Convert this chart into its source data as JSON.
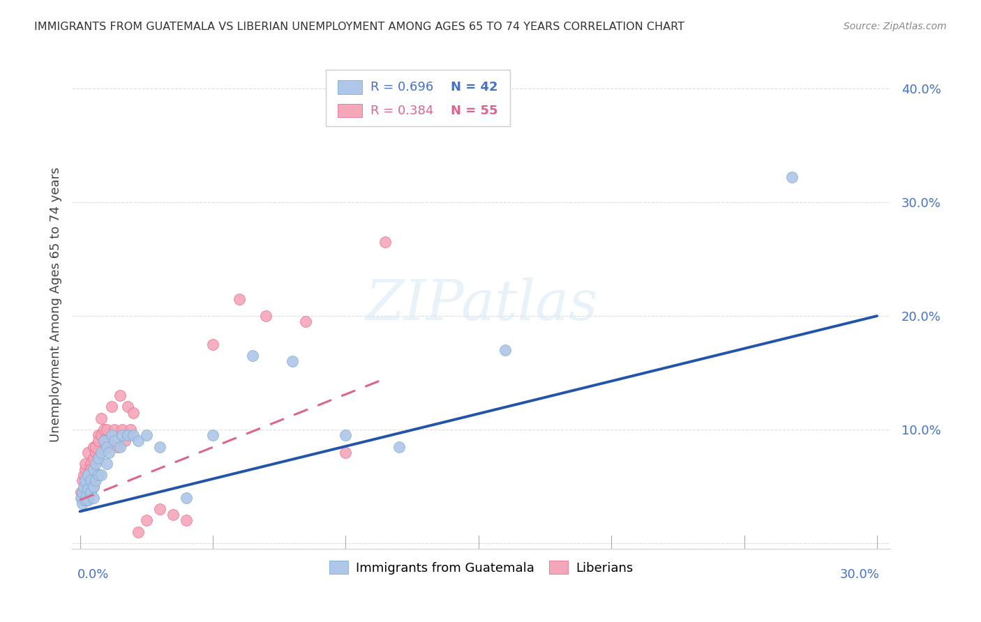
{
  "title": "IMMIGRANTS FROM GUATEMALA VS LIBERIAN UNEMPLOYMENT AMONG AGES 65 TO 74 YEARS CORRELATION CHART",
  "source": "Source: ZipAtlas.com",
  "ylabel": "Unemployment Among Ages 65 to 74 years",
  "xlim": [
    -0.003,
    0.305
  ],
  "ylim": [
    -0.005,
    0.425
  ],
  "ytick_vals": [
    0.0,
    0.1,
    0.2,
    0.3,
    0.4
  ],
  "ytick_labels": [
    "",
    "10.0%",
    "20.0%",
    "30.0%",
    "40.0%"
  ],
  "color_blue_fill": "#AEC6E8",
  "color_blue_edge": "#7AAFD4",
  "color_pink_fill": "#F4A7B9",
  "color_pink_edge": "#E87090",
  "color_blue_line": "#2255AA",
  "color_pink_line": "#DD6688",
  "color_yaxis": "#4472C4",
  "color_grid": "#DDDDDD",
  "legend_r1": "R = 0.696",
  "legend_n1": "N = 42",
  "legend_r2": "R = 0.384",
  "legend_n2": "N = 55",
  "guatemala_x": [
    0.0005,
    0.001,
    0.001,
    0.0015,
    0.002,
    0.002,
    0.0025,
    0.003,
    0.003,
    0.003,
    0.004,
    0.004,
    0.005,
    0.005,
    0.005,
    0.006,
    0.006,
    0.007,
    0.007,
    0.008,
    0.008,
    0.009,
    0.01,
    0.01,
    0.011,
    0.012,
    0.013,
    0.015,
    0.016,
    0.018,
    0.02,
    0.022,
    0.025,
    0.03,
    0.04,
    0.05,
    0.065,
    0.08,
    0.1,
    0.12,
    0.16,
    0.268
  ],
  "guatemala_y": [
    0.04,
    0.035,
    0.045,
    0.05,
    0.038,
    0.055,
    0.042,
    0.048,
    0.038,
    0.06,
    0.055,
    0.045,
    0.065,
    0.05,
    0.04,
    0.07,
    0.055,
    0.075,
    0.06,
    0.08,
    0.06,
    0.09,
    0.085,
    0.07,
    0.08,
    0.095,
    0.09,
    0.085,
    0.095,
    0.095,
    0.095,
    0.09,
    0.095,
    0.085,
    0.04,
    0.095,
    0.165,
    0.16,
    0.095,
    0.085,
    0.17,
    0.322
  ],
  "liberian_x": [
    0.0005,
    0.001,
    0.001,
    0.001,
    0.0015,
    0.002,
    0.002,
    0.002,
    0.002,
    0.002,
    0.0025,
    0.003,
    0.003,
    0.003,
    0.003,
    0.004,
    0.004,
    0.004,
    0.004,
    0.005,
    0.005,
    0.005,
    0.005,
    0.006,
    0.006,
    0.007,
    0.007,
    0.007,
    0.008,
    0.008,
    0.009,
    0.009,
    0.01,
    0.01,
    0.011,
    0.012,
    0.013,
    0.014,
    0.015,
    0.016,
    0.017,
    0.018,
    0.019,
    0.02,
    0.022,
    0.025,
    0.03,
    0.035,
    0.04,
    0.05,
    0.06,
    0.07,
    0.085,
    0.1,
    0.115
  ],
  "liberian_y": [
    0.045,
    0.042,
    0.055,
    0.038,
    0.06,
    0.05,
    0.065,
    0.04,
    0.07,
    0.048,
    0.055,
    0.045,
    0.06,
    0.08,
    0.038,
    0.07,
    0.055,
    0.065,
    0.05,
    0.085,
    0.065,
    0.05,
    0.075,
    0.08,
    0.085,
    0.095,
    0.09,
    0.075,
    0.095,
    0.11,
    0.09,
    0.1,
    0.085,
    0.1,
    0.09,
    0.12,
    0.1,
    0.085,
    0.13,
    0.1,
    0.09,
    0.12,
    0.1,
    0.115,
    0.01,
    0.02,
    0.03,
    0.025,
    0.02,
    0.175,
    0.215,
    0.2,
    0.195,
    0.08,
    0.265
  ],
  "blue_line_x0": 0.0,
  "blue_line_x1": 0.3,
  "blue_line_y0": 0.028,
  "blue_line_y1": 0.2,
  "pink_line_x0": 0.0,
  "pink_line_x1": 0.115,
  "pink_line_y0": 0.038,
  "pink_line_y1": 0.145
}
